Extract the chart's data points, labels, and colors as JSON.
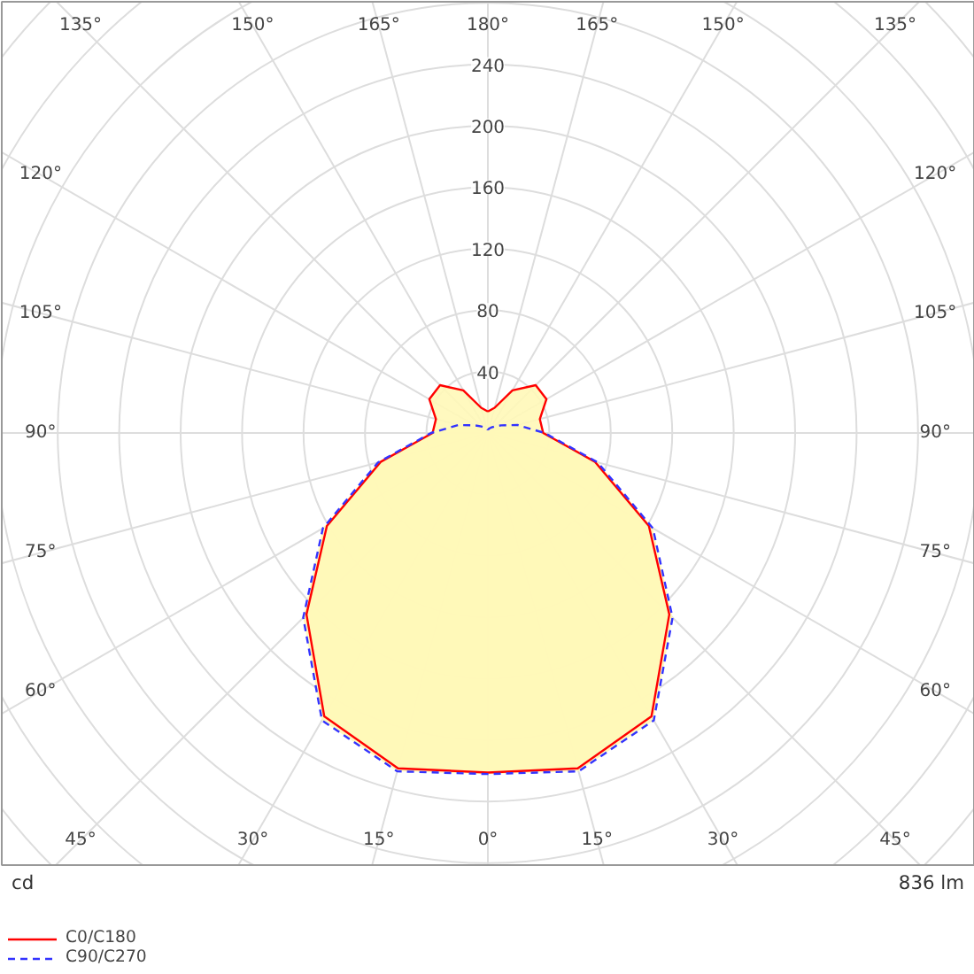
{
  "chart_data": {
    "type": "radar",
    "categories": [
      "180°",
      "165°",
      "150°",
      "135°",
      "120°",
      "105°",
      "90°",
      "75°",
      "60°",
      "45°",
      "30°",
      "15°",
      "0°",
      "15°",
      "30°",
      "45°",
      "60°",
      "75°",
      "90°",
      "105°",
      "120°",
      "135°",
      "150°",
      "165°"
    ],
    "series": [
      {
        "name": "C0/C180",
        "color": "#ff0000",
        "line_style": "solid",
        "values": [
          14,
          17,
          32,
          44,
          44,
          35,
          36,
          72,
          121,
          167,
          213,
          226,
          221,
          226,
          213,
          167,
          121,
          72,
          36,
          35,
          44,
          44,
          32,
          17
        ]
      },
      {
        "name": "C90/C270",
        "color": "#3333ff",
        "line_style": "dashed",
        "values": [
          2,
          3,
          4,
          6,
          10,
          20,
          37,
          74,
          124,
          170,
          216,
          228,
          222,
          228,
          216,
          170,
          124,
          74,
          37,
          20,
          10,
          6,
          4,
          3
        ]
      }
    ],
    "ylim": [
      0,
      400
    ],
    "yticks": [
      40,
      80,
      120,
      160,
      200,
      240
    ],
    "grid": true,
    "legend": "bottom left",
    "annotations": [
      "cd",
      "836 lm"
    ]
  }
}
